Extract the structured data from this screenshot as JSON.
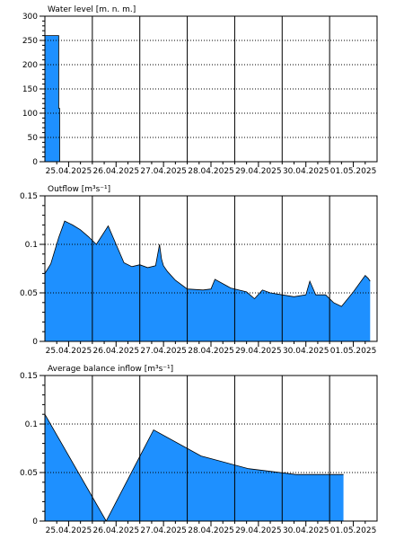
{
  "colors": {
    "fill": "#1e90ff",
    "stroke": "#000000",
    "grid": "#000000",
    "background": "#ffffff"
  },
  "chart_data": [
    {
      "type": "area",
      "title": "Water level [m. n. m.]",
      "ylim": [
        0,
        300
      ],
      "yticks": [
        0,
        50,
        100,
        150,
        200,
        250,
        300
      ],
      "ytick_labels": [
        "0",
        "50",
        "100",
        "150",
        "200",
        "250",
        "300"
      ],
      "xlim": [
        "2025-04-25 00:00",
        "2025-05-02 00:00"
      ],
      "xtick_labels": [
        "25.04.2025",
        "26.04.2025",
        "27.04.2025",
        "28.04.2025",
        "29.04.2025",
        "30.04.2025",
        "01.05.2025"
      ],
      "grid": true,
      "series": [
        {
          "x": [
            "2025-04-25 00:00",
            "2025-04-25 07:00",
            "2025-04-25 07:00",
            "2025-04-25 07:30",
            "2025-04-25 07:30",
            "2025-05-02 00:00"
          ],
          "y": [
            260,
            260,
            110,
            110,
            0,
            0
          ]
        }
      ]
    },
    {
      "type": "area",
      "title": "Outflow [m³s⁻¹]",
      "ylim": [
        0,
        0.15
      ],
      "yticks": [
        0,
        0.05,
        0.1,
        0.15
      ],
      "ytick_labels": [
        "0",
        "0.05",
        "0.1",
        "0.15"
      ],
      "xlim": [
        "2025-04-25 00:00",
        "2025-05-02 00:00"
      ],
      "xtick_labels": [
        "25.04.2025",
        "26.04.2025",
        "27.04.2025",
        "28.04.2025",
        "29.04.2025",
        "30.04.2025",
        "01.05.2025"
      ],
      "grid": true,
      "series": [
        {
          "x": [
            "2025-04-24 20:00",
            "2025-04-25 00:00",
            "2025-04-25 03:00",
            "2025-04-25 07:00",
            "2025-04-25 10:00",
            "2025-04-25 12:00",
            "2025-04-25 14:00",
            "2025-04-25 18:00",
            "2025-04-25 22:00",
            "2025-04-26 02:00",
            "2025-04-26 08:00",
            "2025-04-26 12:00",
            "2025-04-26 16:00",
            "2025-04-26 20:00",
            "2025-04-27 00:00",
            "2025-04-27 04:00",
            "2025-04-27 08:00",
            "2025-04-27 10:00",
            "2025-04-27 11:00",
            "2025-04-27 12:00",
            "2025-04-27 14:00",
            "2025-04-27 18:00",
            "2025-04-28 00:00",
            "2025-04-28 08:00",
            "2025-04-28 12:00",
            "2025-04-28 14:00",
            "2025-04-28 22:00",
            "2025-04-29 06:00",
            "2025-04-29 10:00",
            "2025-04-29 14:00",
            "2025-04-29 18:00",
            "2025-04-30 00:00",
            "2025-04-30 06:00",
            "2025-04-30 12:00",
            "2025-04-30 14:00",
            "2025-04-30 17:00",
            "2025-04-30 22:00",
            "2025-05-01 02:00",
            "2025-05-01 06:00",
            "2025-05-01 12:00",
            "2025-05-01 18:00",
            "2025-05-01 19:30",
            "2025-05-01 20:30"
          ],
          "y": [
            0.072,
            0.07,
            0.08,
            0.107,
            0.124,
            0.122,
            0.12,
            0.115,
            0.108,
            0.1,
            0.119,
            0.1,
            0.081,
            0.077,
            0.079,
            0.076,
            0.078,
            0.1,
            0.085,
            0.078,
            0.072,
            0.063,
            0.054,
            0.053,
            0.054,
            0.064,
            0.055,
            0.051,
            0.044,
            0.053,
            0.05,
            0.048,
            0.046,
            0.048,
            0.062,
            0.048,
            0.048,
            0.04,
            0.036,
            0.051,
            0.068,
            0.065,
            0.062
          ]
        }
      ]
    },
    {
      "type": "area",
      "title": "Average balance inflow  [m³s⁻¹]",
      "ylim": [
        0,
        0.15
      ],
      "yticks": [
        0,
        0.05,
        0.1,
        0.15
      ],
      "ytick_labels": [
        "0",
        "0.05",
        "0.1",
        "0.15"
      ],
      "xlim": [
        "2025-04-25 00:00",
        "2025-05-02 00:00"
      ],
      "xtick_labels": [
        "25.04.2025",
        "26.04.2025",
        "27.04.2025",
        "28.04.2025",
        "29.04.2025",
        "30.04.2025",
        "01.05.2025"
      ],
      "grid": true,
      "series": [
        {
          "x": [
            "2025-04-25 00:00",
            "2025-04-26 07:00",
            "2025-04-27 07:00",
            "2025-04-28 07:00",
            "2025-04-29 07:00",
            "2025-04-30 07:00",
            "2025-05-01 07:00"
          ],
          "y": [
            0.11,
            0.0,
            0.094,
            0.067,
            0.054,
            0.048,
            0.048
          ]
        }
      ]
    }
  ]
}
